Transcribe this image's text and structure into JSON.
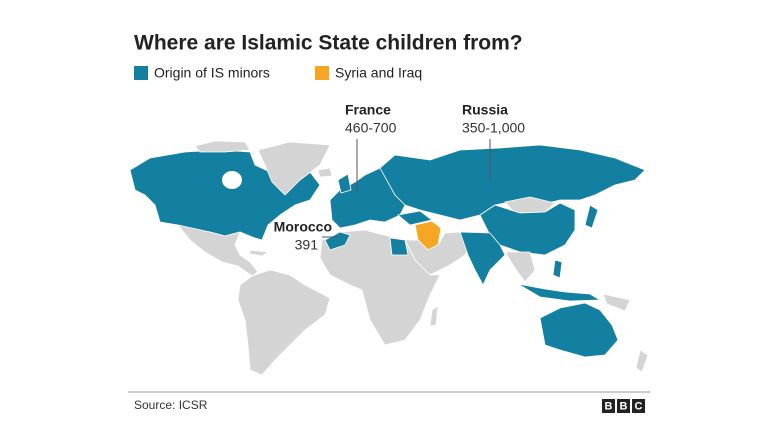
{
  "title": "Where are Islamic State children from?",
  "legend": [
    {
      "label": "Origin of IS minors",
      "color": "#1380a1"
    },
    {
      "label": "Syria and Iraq",
      "color": "#f6a623"
    }
  ],
  "annotations": [
    {
      "country": "France",
      "figure": "460-700"
    },
    {
      "country": "Russia",
      "figure": "350-1,000"
    },
    {
      "country": "Morocco",
      "figure": "391"
    }
  ],
  "source": "Source: ICSR",
  "logo": [
    "B",
    "B",
    "C"
  ]
}
